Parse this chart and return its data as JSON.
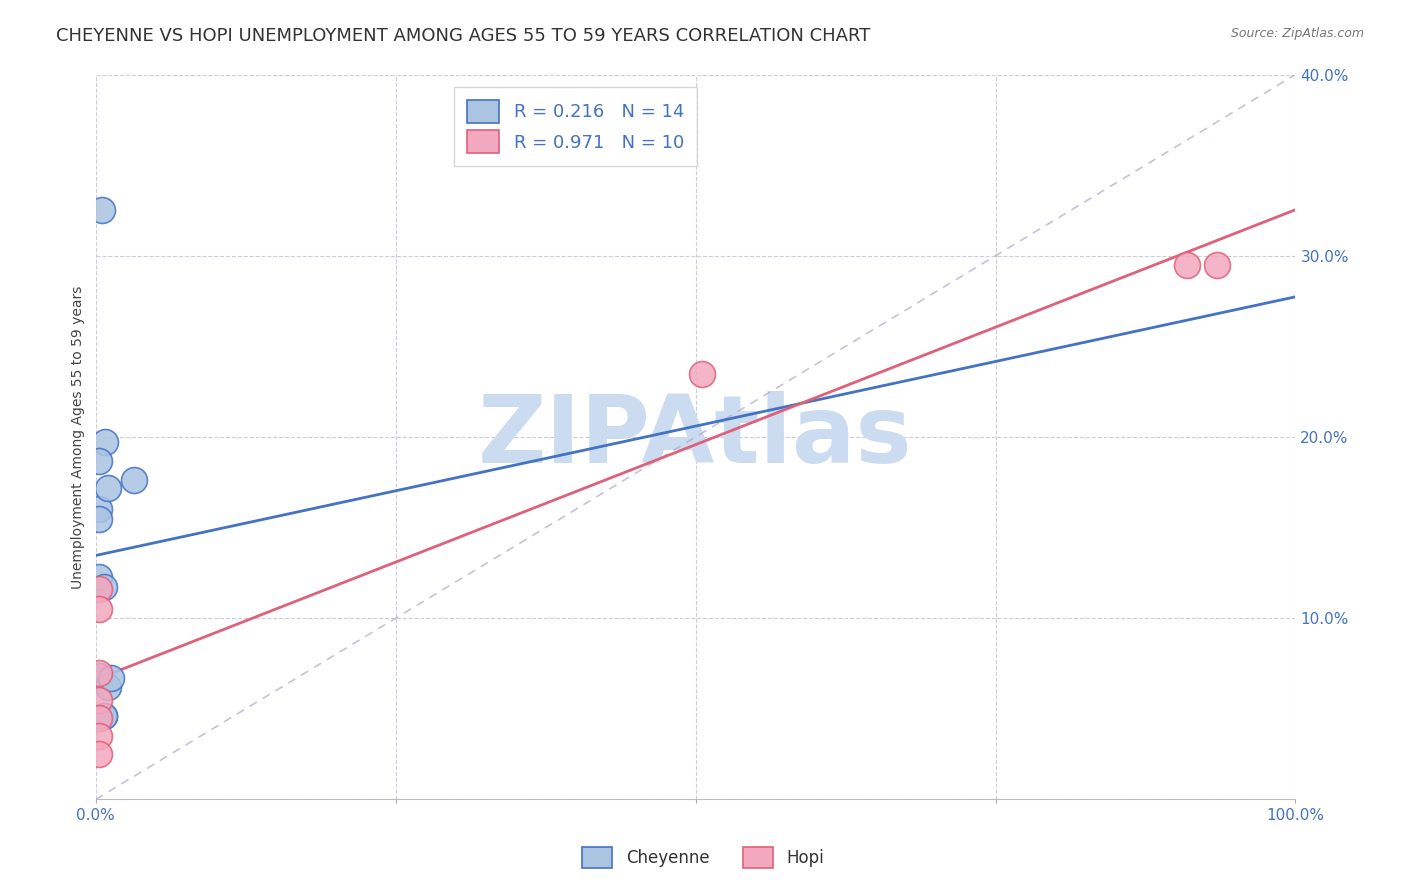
{
  "title": "CHEYENNE VS HOPI UNEMPLOYMENT AMONG AGES 55 TO 59 YEARS CORRELATION CHART",
  "source": "Source: ZipAtlas.com",
  "ylabel": "Unemployment Among Ages 55 to 59 years",
  "xlim": [
    0,
    1.0
  ],
  "ylim": [
    0,
    0.4
  ],
  "xticks": [
    0.0,
    0.25,
    0.5,
    0.75,
    1.0
  ],
  "xtick_labels": [
    "0.0%",
    "",
    "",
    "",
    "100.0%"
  ],
  "yticks": [
    0.0,
    0.1,
    0.2,
    0.3,
    0.4
  ],
  "ytick_labels_right": [
    "",
    "10.0%",
    "20.0%",
    "30.0%",
    "40.0%"
  ],
  "cheyenne_x": [
    0.005,
    0.008,
    0.003,
    0.003,
    0.003,
    0.003,
    0.007,
    0.01,
    0.003,
    0.01,
    0.013,
    0.032,
    0.007,
    0.007
  ],
  "cheyenne_y": [
    0.325,
    0.197,
    0.187,
    0.16,
    0.155,
    0.123,
    0.117,
    0.172,
    0.068,
    0.062,
    0.067,
    0.176,
    0.046,
    0.046
  ],
  "hopi_x": [
    0.003,
    0.003,
    0.003,
    0.003,
    0.003,
    0.003,
    0.505,
    0.91,
    0.935,
    0.003
  ],
  "hopi_y": [
    0.116,
    0.105,
    0.07,
    0.055,
    0.045,
    0.035,
    0.235,
    0.295,
    0.295,
    0.025
  ],
  "cheyenne_color": "#aac4e2",
  "hopi_color": "#f2a8be",
  "cheyenne_line_color": "#4472c4",
  "hopi_line_color": "#e0607a",
  "reference_line_color": "#b0b0c8",
  "cheyenne_r": 0.216,
  "cheyenne_n": 14,
  "hopi_r": 0.971,
  "hopi_n": 10,
  "watermark": "ZIPAtlas",
  "watermark_color": "#ccdcf0",
  "background_color": "#ffffff",
  "grid_color": "#ccccdd",
  "tick_color": "#4472c4",
  "title_fontsize": 13,
  "axis_label_fontsize": 10,
  "tick_fontsize": 11,
  "scatter_size": 350
}
